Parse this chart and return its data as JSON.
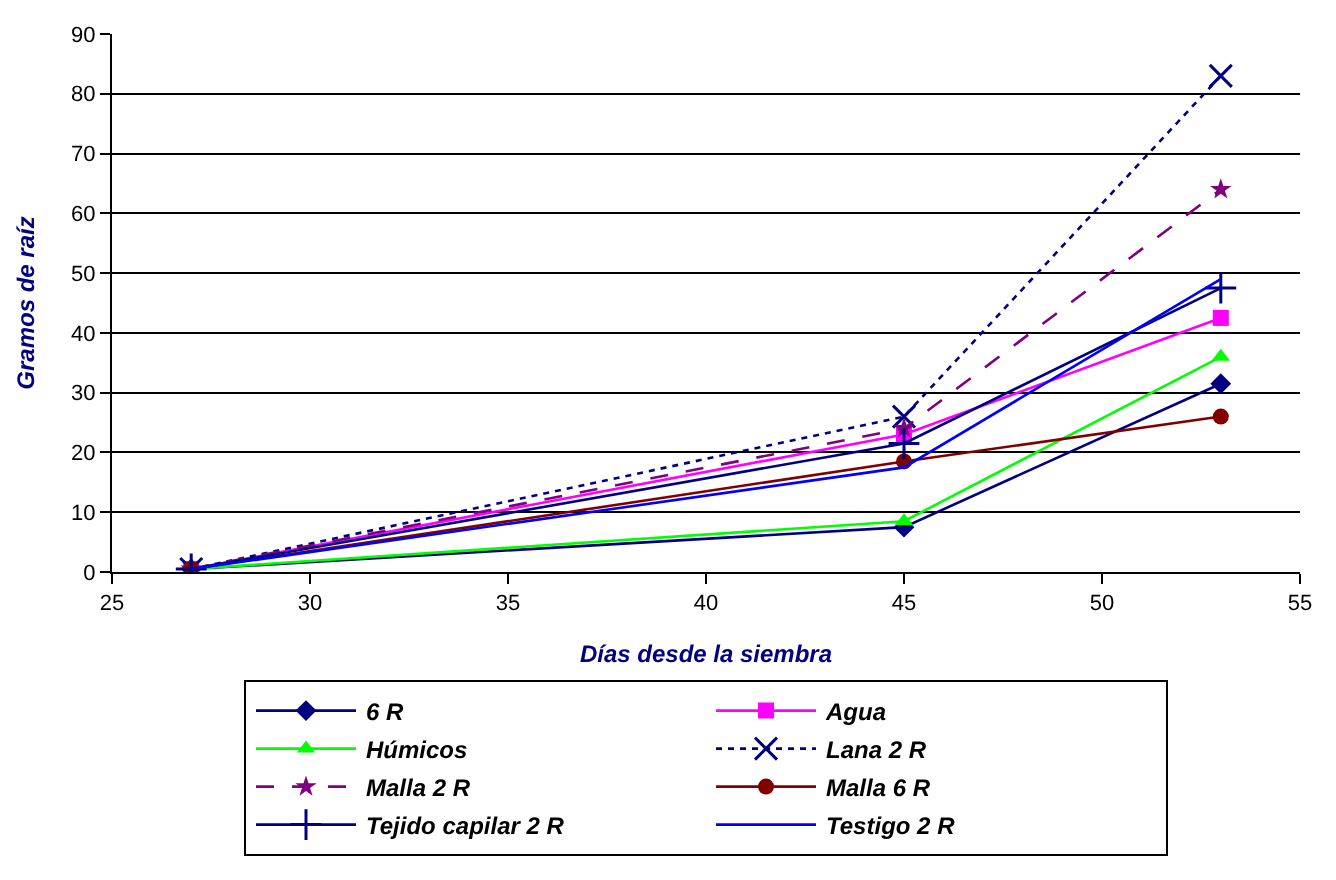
{
  "chart_data": {
    "type": "line",
    "xlabel": "Días desde la siembra",
    "ylabel": "Gramos de raíz",
    "x": [
      27,
      45,
      53
    ],
    "xlim": [
      25,
      55
    ],
    "xticks": [
      25,
      30,
      35,
      40,
      45,
      50,
      55
    ],
    "ylim": [
      0,
      90
    ],
    "yticks": [
      0,
      10,
      20,
      30,
      40,
      50,
      60,
      70,
      80,
      90
    ],
    "grid": "y",
    "legend": "bottom",
    "series": [
      {
        "name": "6 R",
        "color": "#000080",
        "values": [
          0.5,
          7.5,
          31.5
        ],
        "marker": "diamond",
        "line_style": "solid"
      },
      {
        "name": "Agua",
        "color": "#ff00ff",
        "values": [
          0.5,
          23,
          42.5
        ],
        "marker": "square",
        "line_style": "solid"
      },
      {
        "name": "Húmicos",
        "color": "#00ff00",
        "values": [
          0.5,
          8.5,
          36
        ],
        "marker": "triangle",
        "line_style": "solid"
      },
      {
        "name": "Lana 2 R",
        "color": "#000080",
        "values": [
          0.5,
          26,
          83
        ],
        "marker": "x",
        "line_style": "dotted"
      },
      {
        "name": "Malla 2 R",
        "color": "#800080",
        "values": [
          0.5,
          24,
          64
        ],
        "marker": "star",
        "line_style": "dashed"
      },
      {
        "name": "Malla 6 R",
        "color": "#800000",
        "values": [
          0.5,
          18.5,
          26
        ],
        "marker": "circle",
        "line_style": "solid"
      },
      {
        "name": "Tejido capilar 2 R",
        "color": "#000080",
        "values": [
          0.5,
          21.5,
          47.5
        ],
        "marker": "cross",
        "line_style": "solid"
      },
      {
        "name": "Testigo 2 R",
        "color": "#0000ff",
        "values": [
          0.5,
          17.5,
          49
        ],
        "marker": "none",
        "line_style": "solid"
      }
    ]
  }
}
